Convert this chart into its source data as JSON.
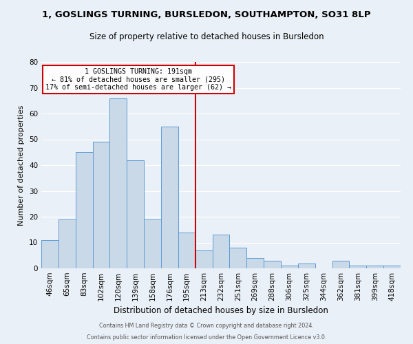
{
  "title": "1, GOSLINGS TURNING, BURSLEDON, SOUTHAMPTON, SO31 8LP",
  "subtitle": "Size of property relative to detached houses in Bursledon",
  "xlabel": "Distribution of detached houses by size in Bursledon",
  "ylabel": "Number of detached properties",
  "bar_labels": [
    "46sqm",
    "65sqm",
    "83sqm",
    "102sqm",
    "120sqm",
    "139sqm",
    "158sqm",
    "176sqm",
    "195sqm",
    "213sqm",
    "232sqm",
    "251sqm",
    "269sqm",
    "288sqm",
    "306sqm",
    "325sqm",
    "344sqm",
    "362sqm",
    "381sqm",
    "399sqm",
    "418sqm"
  ],
  "bar_heights": [
    11,
    19,
    45,
    49,
    66,
    42,
    19,
    55,
    14,
    7,
    13,
    8,
    4,
    3,
    1,
    2,
    0,
    3,
    1,
    1,
    1
  ],
  "bar_color": "#c9d9e8",
  "bar_edge_color": "#5b9bd5",
  "marker_index": 8,
  "marker_color": "#cc0000",
  "annotation_title": "1 GOSLINGS TURNING: 191sqm",
  "annotation_line1": "← 81% of detached houses are smaller (295)",
  "annotation_line2": "17% of semi-detached houses are larger (62) →",
  "annotation_box_color": "#ffffff",
  "annotation_box_edge": "#cc0000",
  "ylim": [
    0,
    80
  ],
  "yticks": [
    0,
    10,
    20,
    30,
    40,
    50,
    60,
    70,
    80
  ],
  "footer1": "Contains HM Land Registry data © Crown copyright and database right 2024.",
  "footer2": "Contains public sector information licensed under the Open Government Licence v3.0.",
  "bg_color": "#eaf0f7",
  "plot_bg_color": "#eaf0f7",
  "title_fontsize": 9.5,
  "subtitle_fontsize": 8.5,
  "ylabel_fontsize": 8,
  "xlabel_fontsize": 8.5,
  "tick_fontsize": 7.5,
  "footer_fontsize": 5.8
}
